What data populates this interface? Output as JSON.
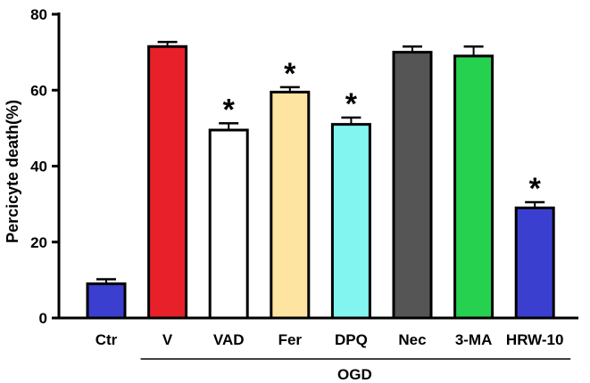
{
  "chart_data": {
    "type": "bar",
    "title": "",
    "xlabel": "",
    "ylabel": "Percicyte death(%)",
    "ylim": [
      0,
      80
    ],
    "yticks": [
      0,
      20,
      40,
      60,
      80
    ],
    "categories": [
      "Ctr",
      "V",
      "VAD",
      "Fer",
      "DPQ",
      "Nec",
      "3-MA",
      "HRW-10"
    ],
    "values": [
      9,
      71.5,
      49.5,
      59.5,
      51,
      70,
      69,
      29
    ],
    "errors": [
      1.2,
      1.2,
      1.8,
      1.3,
      1.8,
      1.5,
      2.5,
      1.5
    ],
    "colors": [
      "#3a3fd0",
      "#e8202a",
      "#ffffff",
      "#fde4a0",
      "#82f5f0",
      "#555555",
      "#26d150",
      "#3a3fd0"
    ],
    "significance": [
      "",
      "",
      "*",
      "*",
      "*",
      "",
      "",
      "*"
    ],
    "group": {
      "label": "OGD",
      "from_category": "V",
      "to_category": "HRW-10"
    }
  }
}
